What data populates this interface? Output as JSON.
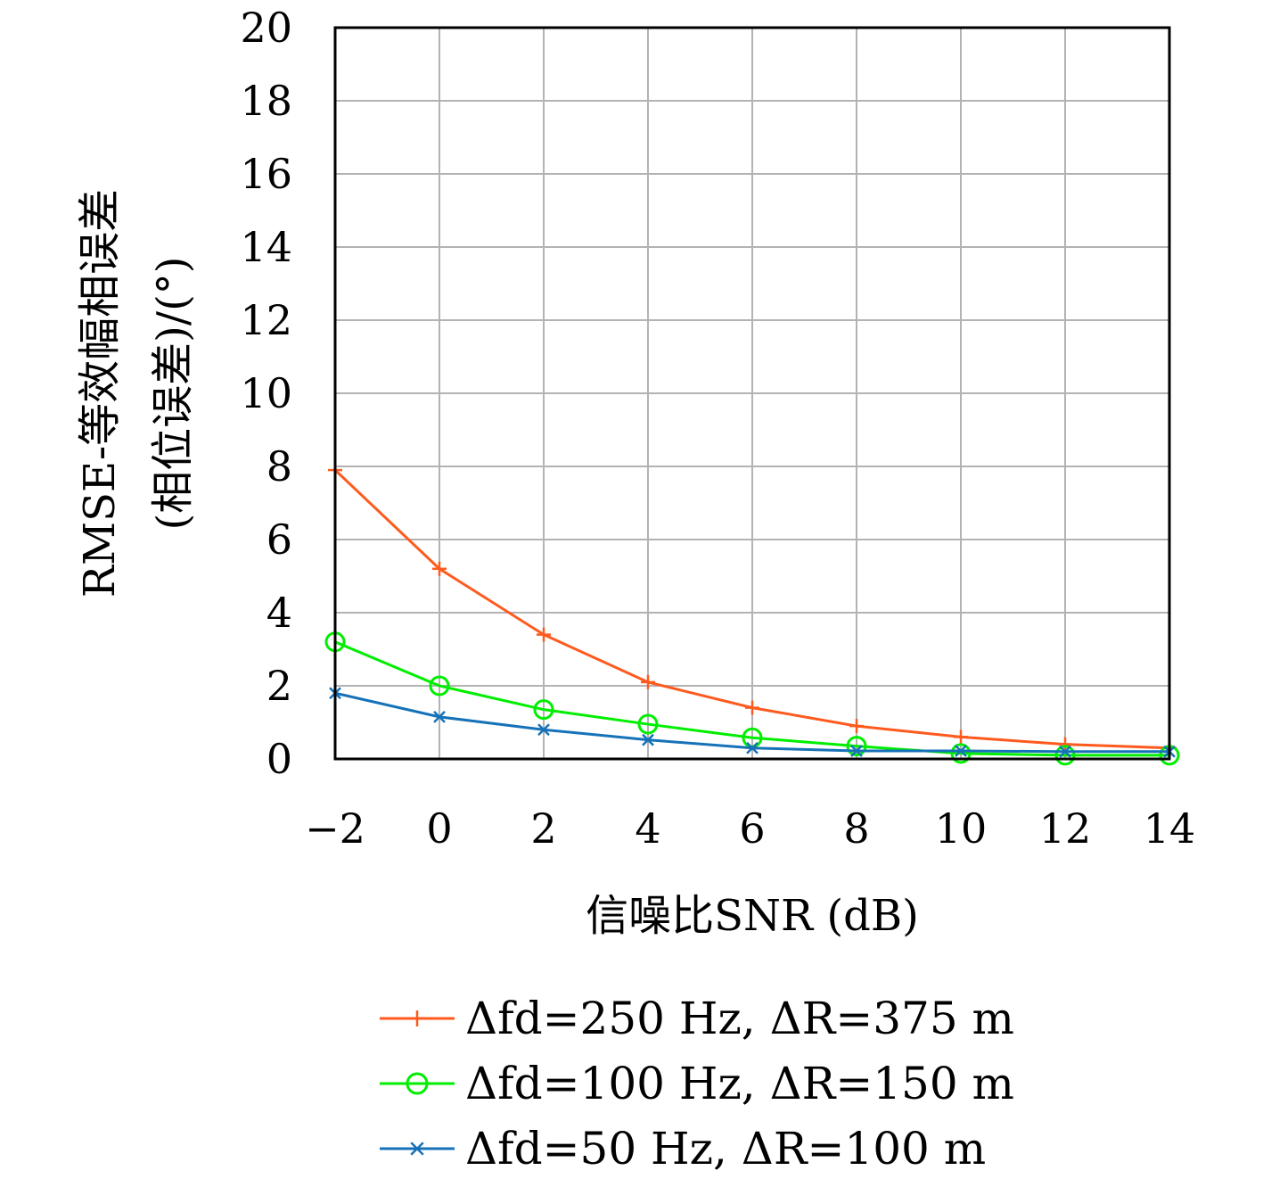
{
  "chart_data": {
    "type": "line",
    "xlabel": "信噪比SNR (dB)",
    "ylabel_line1": "RMSE-等效幅相误差",
    "ylabel_line2": "(相位误差)/(°)",
    "xlim": [
      -2,
      14
    ],
    "ylim": [
      0,
      20
    ],
    "xticks": [
      -2,
      0,
      2,
      4,
      6,
      8,
      10,
      12,
      14
    ],
    "xtick_labels": [
      "−2",
      "0",
      "2",
      "4",
      "6",
      "8",
      "10",
      "12",
      "14"
    ],
    "yticks": [
      0,
      2,
      4,
      6,
      8,
      10,
      12,
      14,
      16,
      18,
      20
    ],
    "ytick_labels": [
      "0",
      "2",
      "4",
      "6",
      "8",
      "10",
      "12",
      "14",
      "16",
      "18",
      "20"
    ],
    "grid": true,
    "legend_position": "bottom",
    "series": [
      {
        "name": "Δfd=250 Hz, ΔR=375 m",
        "color": "#ff5a1e",
        "marker": "plus",
        "x": [
          -2,
          0,
          2,
          4,
          6,
          8,
          10,
          12,
          14
        ],
        "y": [
          7.9,
          5.2,
          3.4,
          2.1,
          1.4,
          0.9,
          0.6,
          0.4,
          0.3
        ]
      },
      {
        "name": "Δfd=100 Hz, ΔR=150 m",
        "color": "#00ee00",
        "marker": "circle",
        "x": [
          -2,
          0,
          2,
          4,
          6,
          8,
          10,
          12,
          14
        ],
        "y": [
          3.2,
          2.0,
          1.35,
          0.95,
          0.58,
          0.35,
          0.15,
          0.1,
          0.1
        ]
      },
      {
        "name": "Δfd=50 Hz, ΔR=100 m",
        "color": "#1672b8",
        "marker": "x",
        "x": [
          -2,
          0,
          2,
          4,
          6,
          8,
          10,
          12,
          14
        ],
        "y": [
          1.8,
          1.15,
          0.8,
          0.52,
          0.3,
          0.22,
          0.22,
          0.2,
          0.2
        ]
      }
    ]
  }
}
